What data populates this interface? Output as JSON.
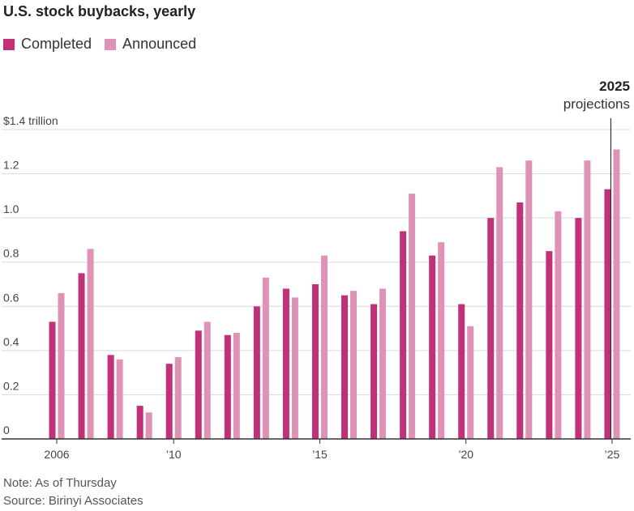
{
  "chart_data": {
    "type": "bar",
    "title": "U.S. stock buybacks, yearly",
    "ylabel": "",
    "xlabel": "",
    "ylim": [
      0,
      1.4
    ],
    "y_ticks": [
      {
        "value": 0,
        "label": "0"
      },
      {
        "value": 0.2,
        "label": "0.2"
      },
      {
        "value": 0.4,
        "label": "0.4"
      },
      {
        "value": 0.6,
        "label": "0.6"
      },
      {
        "value": 0.8,
        "label": "0.8"
      },
      {
        "value": 1.0,
        "label": "1.0"
      },
      {
        "value": 1.2,
        "label": "1.2"
      },
      {
        "value": 1.4,
        "label": "$1.4 trillion"
      }
    ],
    "categories": [
      "2006",
      "2007",
      "2008",
      "2009",
      "2010",
      "2011",
      "2012",
      "2013",
      "2014",
      "2015",
      "2016",
      "2017",
      "2018",
      "2019",
      "2020",
      "2021",
      "2022",
      "2023",
      "2024",
      "2025"
    ],
    "x_tick_labels": [
      {
        "category": "2006",
        "label": "2006"
      },
      {
        "category": "2010",
        "label": "’10"
      },
      {
        "category": "2015",
        "label": "’15"
      },
      {
        "category": "2020",
        "label": "’20"
      },
      {
        "category": "2025",
        "label": "’25"
      }
    ],
    "series": [
      {
        "name": "Completed",
        "color": "#c2307a",
        "values": [
          0.53,
          0.75,
          0.38,
          0.15,
          0.34,
          0.49,
          0.47,
          0.6,
          0.68,
          0.7,
          0.65,
          0.61,
          0.94,
          0.83,
          0.61,
          1.0,
          1.07,
          0.85,
          1.0,
          1.13
        ]
      },
      {
        "name": "Announced",
        "color": "#dd92b6",
        "values": [
          0.66,
          0.86,
          0.36,
          0.12,
          0.37,
          0.53,
          0.48,
          0.73,
          0.64,
          0.83,
          0.67,
          0.68,
          1.11,
          0.89,
          0.51,
          1.23,
          1.26,
          1.03,
          1.26,
          1.31
        ]
      }
    ],
    "annotation": {
      "category": "2025",
      "year": "2025",
      "text": "projections"
    },
    "legend_position": "top-left"
  },
  "notes": {
    "note": "Note: As of Thursday",
    "source": "Source: Birinyi Associates"
  }
}
